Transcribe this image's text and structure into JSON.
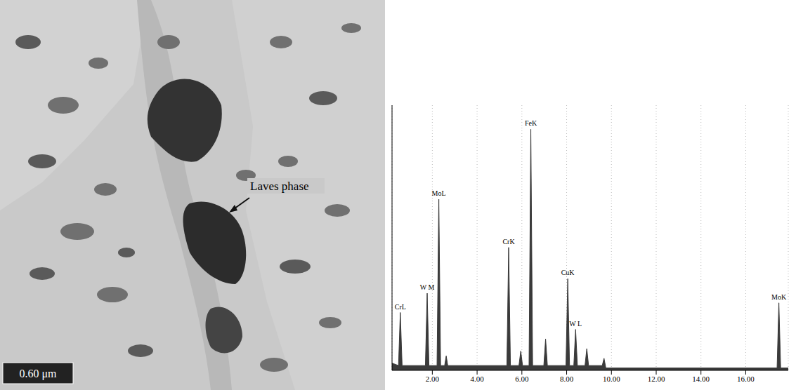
{
  "micrograph": {
    "annotation": "Laves phase",
    "scale_bar": "0.60 μm"
  },
  "chart_data": {
    "type": "area",
    "xlim": [
      0.2,
      17.9
    ],
    "ylim": [
      0,
      110
    ],
    "xticks": [
      {
        "value": 2,
        "label": "2.00"
      },
      {
        "value": 4,
        "label": "4.00"
      },
      {
        "value": 6,
        "label": "6.00"
      },
      {
        "value": 8,
        "label": "8.00"
      },
      {
        "value": 10,
        "label": "10.00"
      },
      {
        "value": 12,
        "label": "12.00"
      },
      {
        "value": 14,
        "label": "14.00"
      },
      {
        "value": 16,
        "label": "16.00"
      }
    ],
    "tick_labels": "x",
    "grid": true,
    "color": "#3a3a3a",
    "x": [
      0.2,
      0.49,
      0.57,
      0.65,
      1.69,
      1.77,
      1.85,
      2.21,
      2.29,
      2.37,
      2.55,
      2.62,
      2.69,
      5.33,
      5.41,
      5.49,
      5.87,
      5.95,
      6.03,
      6.32,
      6.4,
      6.48,
      6.98,
      7.06,
      7.14,
      7.97,
      8.05,
      8.13,
      8.32,
      8.4,
      8.48,
      8.82,
      8.9,
      8.98,
      9.59,
      9.67,
      9.75,
      17.4,
      17.48,
      17.56,
      17.9
    ],
    "values": [
      3,
      2,
      24,
      2,
      2,
      32,
      2,
      2,
      71,
      2,
      2,
      6,
      2,
      2,
      51,
      2,
      2,
      8,
      2,
      2,
      100,
      2,
      2,
      13,
      2,
      2,
      38,
      2,
      2,
      17,
      2,
      2,
      9,
      2,
      2,
      5,
      1,
      1,
      28,
      1,
      1
    ],
    "annotations": [
      {
        "text": "CrL",
        "x": 0.57,
        "y": 24
      },
      {
        "text": "W M",
        "x": 1.77,
        "y": 32
      },
      {
        "text": "MoL",
        "x": 2.29,
        "y": 71
      },
      {
        "text": "CrK",
        "x": 5.41,
        "y": 51
      },
      {
        "text": "FeK",
        "x": 6.4,
        "y": 100
      },
      {
        "text": "CuK",
        "x": 8.05,
        "y": 38
      },
      {
        "text": "W L",
        "x": 8.4,
        "y": 17
      },
      {
        "text": "MoK",
        "x": 17.48,
        "y": 28
      }
    ]
  }
}
